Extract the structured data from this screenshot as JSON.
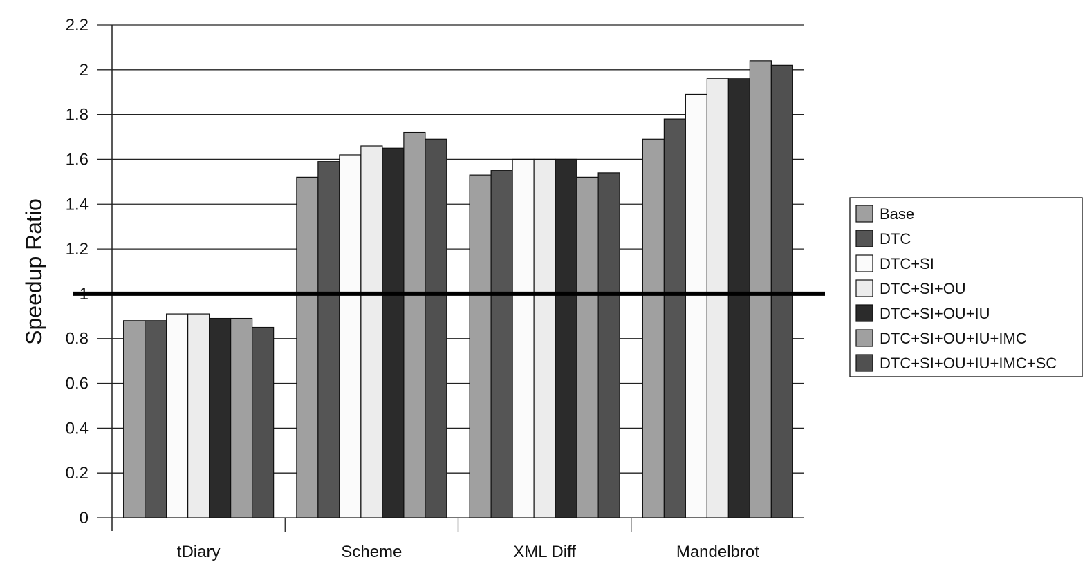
{
  "chart_data": {
    "type": "bar",
    "ylabel": "Speedup Ratio",
    "xlabel": "",
    "ylim": [
      0,
      2.2
    ],
    "yticks": [
      "0",
      "0.2",
      "0.4",
      "0.6",
      "0.8",
      "1",
      "1.2",
      "1.4",
      "1.6",
      "1.8",
      "2",
      "2.2"
    ],
    "grid": "horizontal",
    "legend_position": "right",
    "reference_line": 1,
    "categories": [
      "tDiary",
      "Scheme",
      "XML Diff",
      "Mandelbrot"
    ],
    "series": [
      {
        "name": "Base",
        "color": "#a0a0a0",
        "values": [
          0.88,
          1.52,
          1.53,
          1.69
        ]
      },
      {
        "name": "DTC",
        "color": "#555555",
        "values": [
          0.88,
          1.59,
          1.55,
          1.78
        ]
      },
      {
        "name": "DTC+SI",
        "color": "#fbfbfb",
        "values": [
          0.91,
          1.62,
          1.6,
          1.89
        ]
      },
      {
        "name": "DTC+SI+OU",
        "color": "#ececec",
        "values": [
          0.91,
          1.66,
          1.6,
          1.96
        ]
      },
      {
        "name": "DTC+SI+OU+IU",
        "color": "#2b2b2b",
        "values": [
          0.89,
          1.65,
          1.6,
          1.96
        ]
      },
      {
        "name": "DTC+SI+OU+IU+IMC",
        "color": "#a0a0a0",
        "values": [
          0.89,
          1.72,
          1.52,
          2.04
        ]
      },
      {
        "name": "DTC+SI+OU+IU+IMC+SC",
        "color": "#505050",
        "values": [
          0.85,
          1.69,
          1.54,
          2.02
        ]
      }
    ]
  }
}
